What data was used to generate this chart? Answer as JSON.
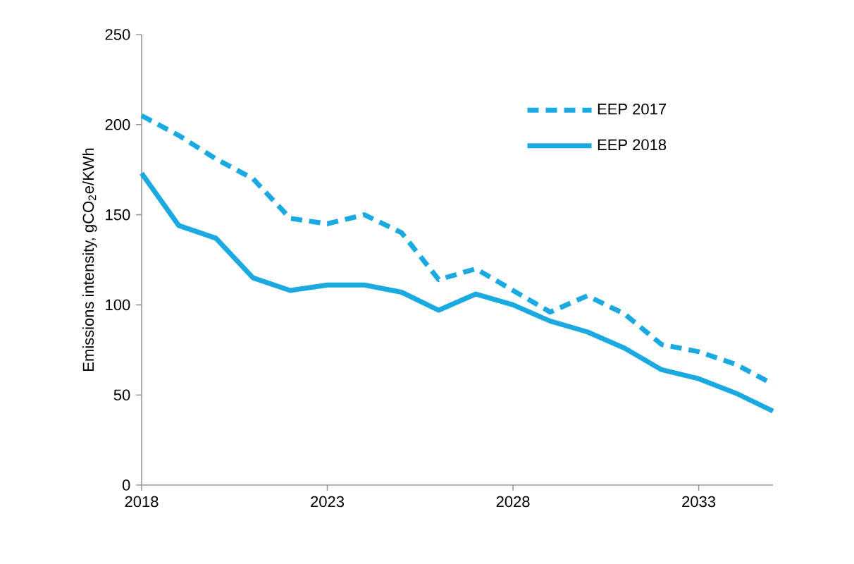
{
  "chart_data": {
    "type": "line",
    "ylabel": "Emissions intensity, gCO$_{2}$e/KWh",
    "x": [
      2018,
      2019,
      2020,
      2021,
      2022,
      2023,
      2024,
      2025,
      2026,
      2027,
      2028,
      2029,
      2030,
      2031,
      2032,
      2033,
      2034,
      2035
    ],
    "series": [
      {
        "name": "EEP 2017",
        "color": "#1ba9e1",
        "line_style": "dashed",
        "values": [
          205,
          194,
          181,
          170,
          148,
          145,
          150,
          140,
          114,
          120,
          108,
          96,
          105,
          95,
          78,
          74,
          67,
          56
        ]
      },
      {
        "name": "EEP 2018",
        "color": "#1ba9e1",
        "line_style": "solid",
        "values": [
          173,
          144,
          137,
          115,
          108,
          111,
          111,
          107,
          97,
          106,
          100,
          91,
          85,
          76,
          64,
          59,
          51,
          41
        ]
      }
    ],
    "xlim": [
      2018,
      2035
    ],
    "xticks": [
      2018,
      2023,
      2028,
      2033
    ],
    "ylim": [
      0,
      250
    ],
    "yticks": [
      0,
      50,
      100,
      150,
      200,
      250
    ],
    "grid": false,
    "legend": "top right",
    "marker": "none"
  }
}
